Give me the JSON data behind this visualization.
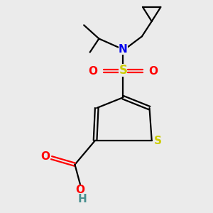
{
  "bg_color": "#ebebeb",
  "black": "#000000",
  "blue": "#0000ee",
  "red": "#ff0000",
  "yellow": "#cccc00",
  "teal": "#4a9090",
  "lw": 1.6,
  "fs": 11,
  "figsize": [
    3.0,
    3.0
  ],
  "dpi": 100,
  "xlim": [
    20,
    280
  ],
  "ylim": [
    10,
    290
  ]
}
